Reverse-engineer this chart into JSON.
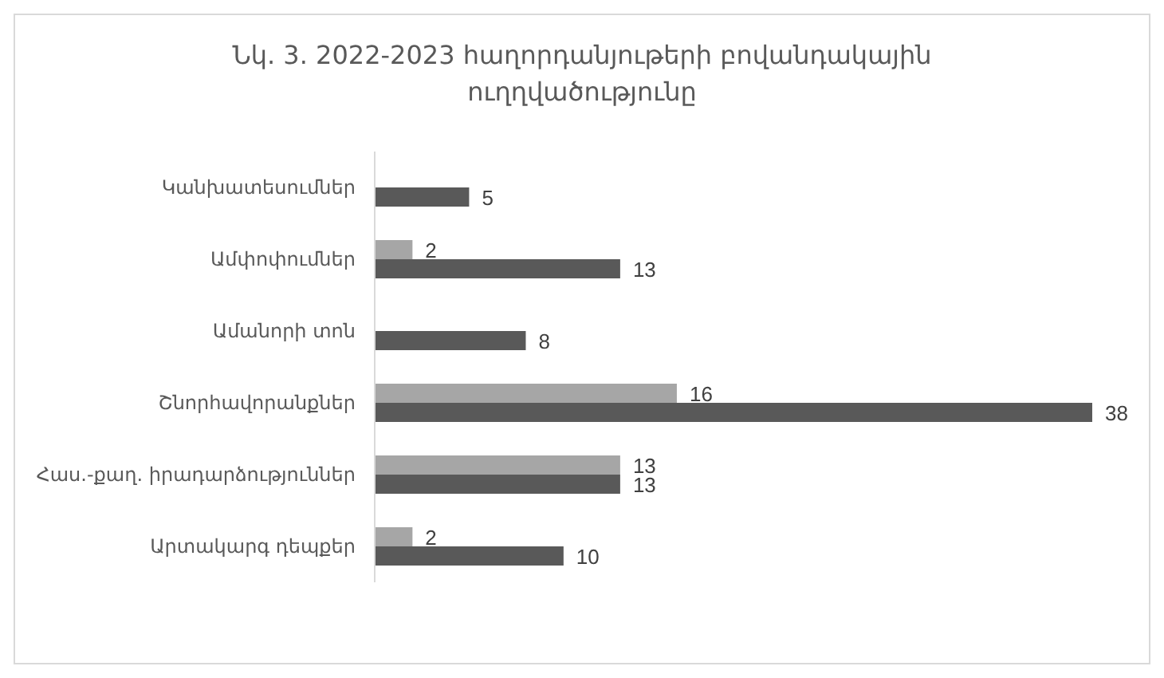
{
  "chart_data": {
    "type": "bar",
    "orientation": "horizontal",
    "title": "Նկ. 3. 2022-2023 հաղորդանյութերի բովանդակային ուղղվածությունը",
    "categories": [
      "Կանխատեսումներ",
      "Ամփոփումներ",
      "Ամանորի տոն",
      "Շնորհավորանքներ",
      "Հաս.-քաղ. իրադարձություններ",
      "Արտակարգ դեպքեր"
    ],
    "series": [
      {
        "color": "#a6a6a6",
        "values": [
          null,
          2,
          null,
          16,
          13,
          2
        ]
      },
      {
        "color": "#595959",
        "values": [
          5,
          13,
          8,
          38,
          13,
          10
        ]
      }
    ],
    "data_labels": true
  }
}
